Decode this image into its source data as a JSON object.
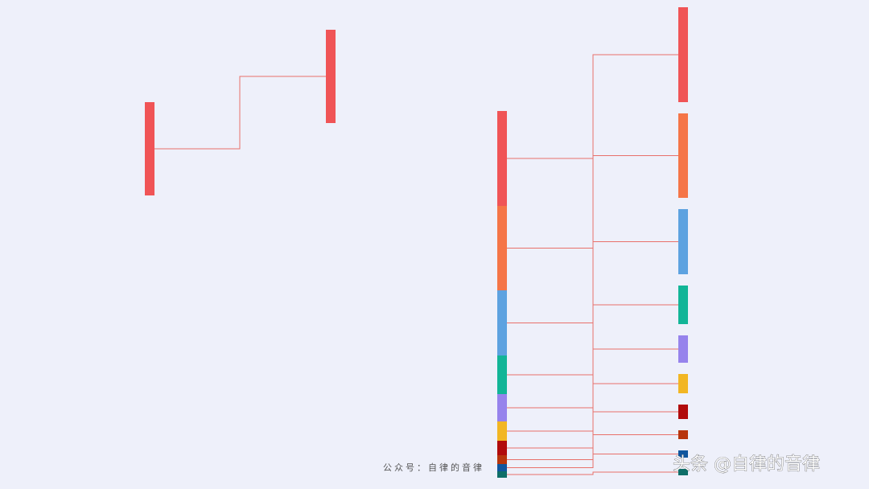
{
  "chart_data": [
    {
      "type": "sankey",
      "values": [
        116
      ],
      "colors": [
        "#f05456"
      ]
    },
    {
      "type": "sankey",
      "values": [
        118,
        105,
        81,
        48,
        34,
        24,
        18,
        11,
        9,
        8
      ],
      "colors": [
        "#f05456",
        "#f57547",
        "#5da2e0",
        "#12b597",
        "#9683ec",
        "#f2b623",
        "#b10b0b",
        "#b8350c",
        "#10569e",
        "#0e6e68"
      ]
    }
  ],
  "watermark": "公众号：自律的音律",
  "brand": "头条 @自律的音律"
}
